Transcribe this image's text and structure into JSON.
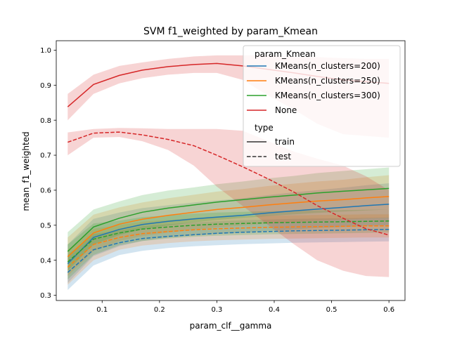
{
  "chart_data": {
    "type": "line",
    "title": "SVM f1_weighted by param_Kmean",
    "xlabel": "param_clf__gamma",
    "ylabel": "mean_f1_weighted",
    "xlim": [
      0.02,
      0.628
    ],
    "ylim": [
      0.285,
      1.027
    ],
    "xticks": [
      0.1,
      0.2,
      0.3,
      0.4,
      0.5,
      0.6
    ],
    "xtick_labels": [
      "0.1",
      "0.2",
      "0.3",
      "0.4",
      "0.5",
      "0.6"
    ],
    "yticks": [
      0.3,
      0.4,
      0.5,
      0.6,
      0.7,
      0.8,
      0.9,
      1.0
    ],
    "ytick_labels": [
      "0.3",
      "0.4",
      "0.5",
      "0.6",
      "0.7",
      "0.8",
      "0.9",
      "1.0"
    ],
    "grid": false,
    "legend_placement": "upper right",
    "legend": {
      "hue_title": "param_Kmean",
      "style_title": "type",
      "style_items": [
        {
          "label": "train",
          "dash": "solid"
        },
        {
          "label": "test",
          "dash": "dashed"
        }
      ]
    },
    "x": [
      0.04,
      0.085,
      0.13,
      0.17,
      0.215,
      0.26,
      0.3,
      0.345,
      0.39,
      0.435,
      0.475,
      0.52,
      0.56,
      0.6
    ],
    "series": [
      {
        "name": "KMeans(n_clusters=200)",
        "type": "train",
        "color": "#1f77b4",
        "values": [
          0.39,
          0.465,
          0.488,
          0.502,
          0.511,
          0.518,
          0.523,
          0.528,
          0.535,
          0.541,
          0.546,
          0.551,
          0.556,
          0.56
        ],
        "lower": [
          0.335,
          0.412,
          0.44,
          0.455,
          0.465,
          0.471,
          0.475,
          0.479,
          0.484,
          0.488,
          0.492,
          0.495,
          0.498,
          0.5
        ],
        "upper": [
          0.445,
          0.518,
          0.536,
          0.549,
          0.557,
          0.565,
          0.571,
          0.577,
          0.586,
          0.594,
          0.6,
          0.607,
          0.614,
          0.62
        ]
      },
      {
        "name": "KMeans(n_clusters=200)",
        "type": "test",
        "color": "#1f77b4",
        "values": [
          0.365,
          0.43,
          0.45,
          0.462,
          0.468,
          0.473,
          0.477,
          0.48,
          0.482,
          0.484,
          0.485,
          0.486,
          0.487,
          0.488
        ],
        "lower": [
          0.315,
          0.385,
          0.415,
          0.427,
          0.435,
          0.44,
          0.443,
          0.446,
          0.448,
          0.45,
          0.451,
          0.452,
          0.453,
          0.454
        ],
        "upper": [
          0.415,
          0.475,
          0.485,
          0.497,
          0.503,
          0.508,
          0.511,
          0.514,
          0.516,
          0.518,
          0.519,
          0.52,
          0.521,
          0.522
        ]
      },
      {
        "name": "KMeans(n_clusters=250)",
        "type": "train",
        "color": "#ff7f0e",
        "values": [
          0.41,
          0.478,
          0.503,
          0.517,
          0.528,
          0.537,
          0.545,
          0.551,
          0.558,
          0.564,
          0.569,
          0.573,
          0.578,
          0.582
        ],
        "lower": [
          0.355,
          0.426,
          0.455,
          0.469,
          0.479,
          0.487,
          0.494,
          0.499,
          0.504,
          0.509,
          0.513,
          0.516,
          0.519,
          0.521
        ],
        "upper": [
          0.465,
          0.53,
          0.551,
          0.565,
          0.577,
          0.587,
          0.596,
          0.603,
          0.612,
          0.619,
          0.625,
          0.63,
          0.637,
          0.643
        ]
      },
      {
        "name": "KMeans(n_clusters=250)",
        "type": "test",
        "color": "#ff7f0e",
        "values": [
          0.38,
          0.445,
          0.465,
          0.476,
          0.482,
          0.487,
          0.49,
          0.492,
          0.494,
          0.495,
          0.496,
          0.497,
          0.498,
          0.498
        ],
        "lower": [
          0.33,
          0.4,
          0.43,
          0.442,
          0.449,
          0.454,
          0.457,
          0.459,
          0.461,
          0.462,
          0.463,
          0.464,
          0.465,
          0.465
        ],
        "upper": [
          0.43,
          0.49,
          0.5,
          0.51,
          0.515,
          0.52,
          0.523,
          0.525,
          0.527,
          0.528,
          0.529,
          0.53,
          0.531,
          0.531
        ]
      },
      {
        "name": "KMeans(n_clusters=300)",
        "type": "train",
        "color": "#2ca02c",
        "values": [
          0.425,
          0.495,
          0.52,
          0.537,
          0.549,
          0.558,
          0.566,
          0.573,
          0.58,
          0.586,
          0.592,
          0.597,
          0.601,
          0.605
        ],
        "lower": [
          0.37,
          0.445,
          0.472,
          0.488,
          0.499,
          0.508,
          0.515,
          0.521,
          0.526,
          0.531,
          0.535,
          0.539,
          0.542,
          0.545
        ],
        "upper": [
          0.48,
          0.545,
          0.568,
          0.586,
          0.599,
          0.608,
          0.617,
          0.625,
          0.634,
          0.641,
          0.649,
          0.655,
          0.66,
          0.665
        ]
      },
      {
        "name": "KMeans(n_clusters=300)",
        "type": "test",
        "color": "#2ca02c",
        "values": [
          0.395,
          0.46,
          0.478,
          0.489,
          0.495,
          0.5,
          0.503,
          0.505,
          0.507,
          0.508,
          0.509,
          0.51,
          0.511,
          0.512
        ],
        "lower": [
          0.345,
          0.415,
          0.443,
          0.455,
          0.462,
          0.467,
          0.47,
          0.472,
          0.474,
          0.475,
          0.476,
          0.477,
          0.478,
          0.479
        ],
        "upper": [
          0.445,
          0.505,
          0.513,
          0.523,
          0.528,
          0.533,
          0.536,
          0.538,
          0.54,
          0.541,
          0.542,
          0.543,
          0.544,
          0.545
        ]
      },
      {
        "name": "None",
        "type": "train",
        "color": "#d62728",
        "values": [
          0.838,
          0.902,
          0.928,
          0.943,
          0.953,
          0.959,
          0.962,
          0.955,
          0.945,
          0.935,
          0.925,
          0.915,
          0.91,
          0.905
        ],
        "lower": [
          0.8,
          0.875,
          0.905,
          0.92,
          0.93,
          0.935,
          0.935,
          0.915,
          0.87,
          0.83,
          0.79,
          0.76,
          0.755,
          0.75
        ],
        "upper": [
          0.875,
          0.93,
          0.955,
          0.965,
          0.975,
          0.982,
          0.985,
          0.985,
          0.985,
          0.98,
          0.98,
          0.977,
          0.975,
          0.975
        ]
      },
      {
        "name": "None",
        "type": "test",
        "color": "#d62728",
        "values": [
          0.737,
          0.763,
          0.766,
          0.758,
          0.745,
          0.727,
          0.7,
          0.667,
          0.632,
          0.594,
          0.556,
          0.52,
          0.49,
          0.472
        ],
        "lower": [
          0.7,
          0.75,
          0.752,
          0.74,
          0.715,
          0.67,
          0.61,
          0.555,
          0.5,
          0.445,
          0.4,
          0.37,
          0.355,
          0.352
        ],
        "upper": [
          0.765,
          0.775,
          0.778,
          0.777,
          0.775,
          0.775,
          0.775,
          0.77,
          0.74,
          0.71,
          0.69,
          0.67,
          0.64,
          0.6
        ]
      }
    ]
  }
}
